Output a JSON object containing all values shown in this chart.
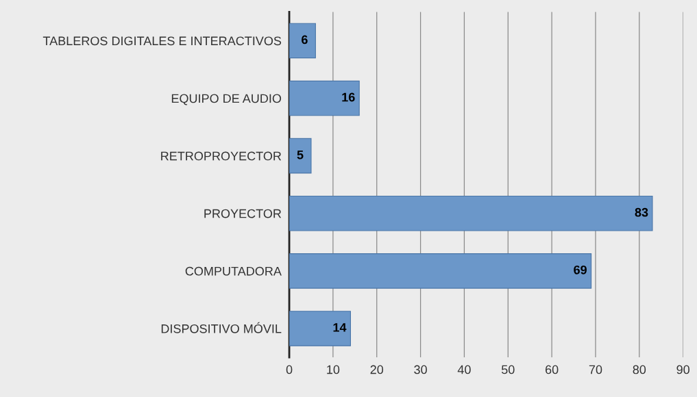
{
  "chart_data": {
    "type": "bar",
    "orientation": "horizontal",
    "categories": [
      "TABLEROS DIGITALES E INTERACTIVOS",
      "EQUIPO DE AUDIO",
      "RETROPROYECTOR",
      "PROYECTOR",
      "COMPUTADORA",
      "DISPOSITIVO MÓVIL"
    ],
    "values": [
      6,
      16,
      5,
      83,
      69,
      14
    ],
    "color": "#6b97c9",
    "xlim": [
      0,
      90
    ],
    "xticks": [
      0,
      10,
      20,
      30,
      40,
      50,
      60,
      70,
      80,
      90
    ],
    "grid": "x",
    "data_labels": true
  }
}
